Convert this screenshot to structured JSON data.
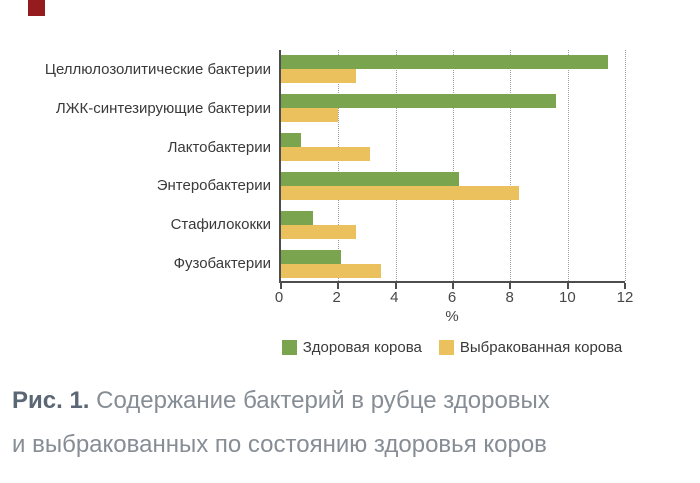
{
  "page": {
    "background": "#ffffff",
    "corner_marker_color": "#951b1e"
  },
  "chart_data": {
    "type": "bar",
    "orientation": "horizontal",
    "title": "",
    "categories": [
      "Целлюлозолитические бактерии",
      "ЛЖК-синтезирующие бактерии",
      "Лактобактерии",
      "Энтеробактерии",
      "Стафилококки",
      "Фузобактерии"
    ],
    "series": [
      {
        "name": "Здоровая корова",
        "color": "#7aa44e",
        "values": [
          11.4,
          9.6,
          0.7,
          6.2,
          1.1,
          2.1
        ]
      },
      {
        "name": "Выбракованная корова",
        "color": "#ebc15e",
        "values": [
          2.6,
          2.0,
          3.1,
          8.3,
          2.6,
          3.5
        ]
      }
    ],
    "xlabel": "%",
    "ylabel": "",
    "x_ticks": [
      0,
      2,
      4,
      6,
      8,
      10,
      12
    ],
    "xlim": [
      0,
      12
    ],
    "grid": "vertical-dotted",
    "legend_position": "bottom-center",
    "axis_color": "#4d4d4d",
    "gridline_color": "#9e9e9e"
  },
  "caption": {
    "prefix": "Рис. 1.",
    "line1": "Содержание бактерий в рубце здоровых",
    "line2": "и выбракованных по состоянию здоровья коров"
  }
}
